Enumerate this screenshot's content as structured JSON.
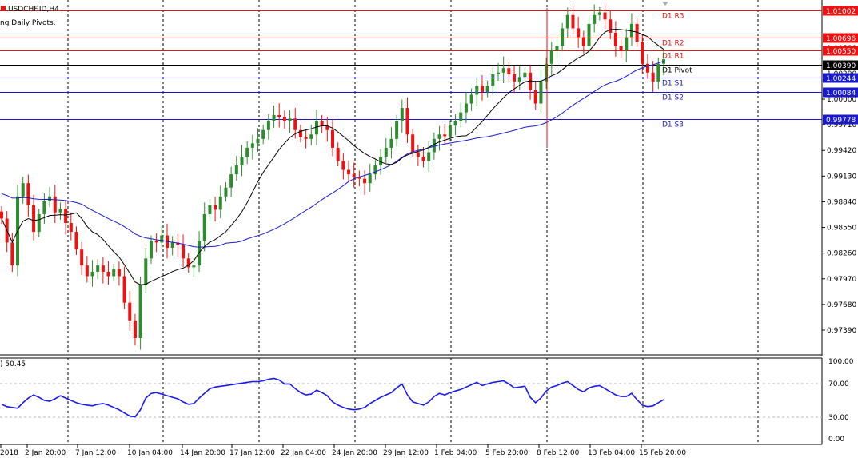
{
  "header": {
    "symbol": "USDCHF.ID,H4",
    "indicator": "ng Daily Pivots."
  },
  "colors": {
    "bull": "#2e8b2e",
    "bear": "#ee1111",
    "ma_fast": "#000000",
    "ma_slow": "#1a1acc",
    "resistance": "#ee1111",
    "support": "#1a1acc",
    "pivot": "#000000",
    "rsi": "#1a1aee",
    "axis_text": "#000000"
  },
  "price_axis": {
    "ticks": [
      "1.00000",
      "0.99710",
      "0.99420",
      "0.99130",
      "0.98840",
      "0.98550",
      "0.98260",
      "0.97970",
      "0.97680",
      "0.97390"
    ],
    "partially_hidden_ticks": [
      "1.00290",
      "1.00580"
    ]
  },
  "pivots": [
    {
      "name": "D1 R3",
      "value": "1.01002",
      "kind": "resistance"
    },
    {
      "name": "D1 R2",
      "value": "1.00696",
      "kind": "resistance"
    },
    {
      "name": "D1 R1",
      "value": "1.00550",
      "kind": "resistance"
    },
    {
      "name": "D1 Pivot",
      "value": "1.00390",
      "kind": "pivot"
    },
    {
      "name": "D1 S1",
      "value": "1.00244",
      "kind": "support"
    },
    {
      "name": "D1 S2",
      "value": "1.00084",
      "kind": "support"
    },
    {
      "name": "D1 S3",
      "value": "0.99778",
      "kind": "support"
    }
  ],
  "rsi": {
    "label": ") 50.45",
    "ticks": [
      "100.00",
      "70.00",
      "30.00",
      "0.00"
    ]
  },
  "time_axis": {
    "labels": [
      "2018",
      "2 Jan 20:00",
      "7 Jan 12:00",
      "10 Jan 04:00",
      "14 Jan 20:00",
      "17 Jan 12:00",
      "22 Jan 04:00",
      "24 Jan 20:00",
      "29 Jan 12:00",
      "1 Feb 04:00",
      "5 Feb 20:00",
      "8 Feb 12:00",
      "13 Feb 04:00",
      "15 Feb 20:00"
    ]
  },
  "chart_data": {
    "type": "candlestick",
    "symbol": "USDCHF.ID",
    "timeframe": "H4",
    "close_series": [
      0.9865,
      0.9838,
      0.9812,
      0.989,
      0.9905,
      0.988,
      0.985,
      0.987,
      0.9885,
      0.989,
      0.9872,
      0.9876,
      0.986,
      0.985,
      0.983,
      0.9812,
      0.98,
      0.9805,
      0.9812,
      0.9805,
      0.98,
      0.9808,
      0.98,
      0.977,
      0.975,
      0.973,
      0.979,
      0.982,
      0.984,
      0.9838,
      0.9846,
      0.9832,
      0.9838,
      0.9835,
      0.982,
      0.981,
      0.9812,
      0.984,
      0.987,
      0.988,
      0.9875,
      0.989,
      0.99,
      0.9915,
      0.9925,
      0.9935,
      0.9945,
      0.995,
      0.9955,
      0.9965,
      0.9975,
      0.9982,
      0.998,
      0.9975,
      0.9978,
      0.9965,
      0.9957,
      0.9955,
      0.996,
      0.9975,
      0.997,
      0.9965,
      0.9945,
      0.993,
      0.992,
      0.9915,
      0.9912,
      0.991,
      0.9905,
      0.9915,
      0.9925,
      0.9935,
      0.9945,
      0.9955,
      0.9975,
      0.999,
      0.996,
      0.994,
      0.9935,
      0.993,
      0.994,
      0.9955,
      0.996,
      0.9958,
      0.997,
      0.9975,
      0.9985,
      0.9995,
      1.0005,
      1.0015,
      1.0008,
      1.0015,
      1.0028,
      1.003,
      1.0035,
      1.0028,
      1.002,
      1.0025,
      1.003,
      1.001,
      0.9995,
      1.002,
      1.004,
      1.0055,
      1.006,
      1.008,
      1.0095,
      1.008,
      1.007,
      1.006,
      1.0085,
      1.0095,
      1.0098,
      1.009,
      1.0075,
      1.006,
      1.0055,
      1.007,
      1.0085,
      1.0065,
      1.004,
      1.003,
      1.002,
      1.004,
      1.0045
    ],
    "ma_fast_period_note": "",
    "ylim": [
      0.9735,
      1.0105
    ],
    "rsi_values": [
      44,
      41,
      40,
      39,
      46,
      52,
      56,
      53,
      49,
      48,
      51,
      55,
      52,
      49,
      46,
      44,
      43,
      42,
      44,
      45,
      43,
      40,
      37,
      33,
      29,
      28,
      37,
      52,
      58,
      59,
      57,
      55,
      53,
      51,
      47,
      44,
      45,
      52,
      58,
      64,
      66,
      67,
      68,
      69,
      70,
      71,
      72,
      73,
      73,
      74,
      76,
      77,
      75,
      70,
      70,
      64,
      59,
      56,
      57,
      62,
      59,
      55,
      47,
      43,
      40,
      38,
      37,
      38,
      40,
      45,
      49,
      53,
      56,
      59,
      65,
      70,
      56,
      47,
      45,
      43,
      47,
      54,
      58,
      56,
      59,
      61,
      63,
      66,
      69,
      72,
      68,
      70,
      72,
      73,
      74,
      70,
      65,
      66,
      67,
      53,
      46,
      52,
      61,
      66,
      68,
      71,
      73,
      68,
      63,
      60,
      65,
      67,
      68,
      64,
      60,
      56,
      54,
      54,
      58,
      50,
      43,
      41,
      42,
      46,
      50
    ]
  }
}
